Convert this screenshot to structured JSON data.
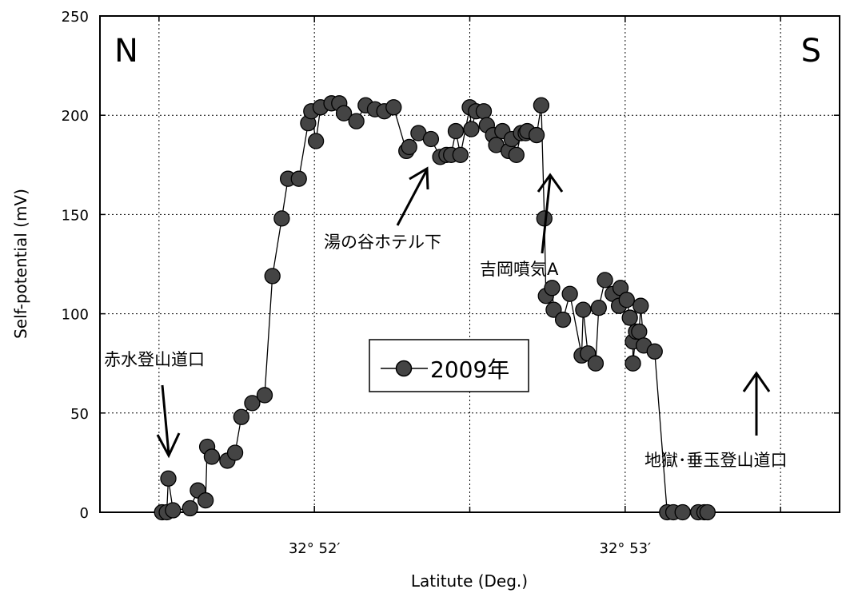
{
  "chart_data": {
    "type": "line",
    "title": "",
    "xlabel": "Latitute (Deg.)",
    "ylabel": "Self-potential (mV)",
    "xlim": [
      51.31,
      53.69
    ],
    "ylim": [
      0,
      250
    ],
    "y_ticks": [
      0,
      50,
      100,
      150,
      200,
      250
    ],
    "x_ticks": [
      {
        "value": 52,
        "label": "32° 52′"
      },
      {
        "value": 53,
        "label": "32° 53′"
      }
    ],
    "x_minor_ticks": [
      51.5,
      52.5,
      53.5
    ],
    "grid": true,
    "series": [
      {
        "name": "2009年",
        "color": "#444444",
        "marker": "circle",
        "x": [
          51.51,
          51.525,
          51.53,
          51.545,
          51.6,
          51.625,
          51.65,
          51.655,
          51.67,
          51.72,
          51.745,
          51.765,
          51.8,
          51.84,
          51.865,
          51.895,
          51.915,
          51.95,
          51.98,
          51.99,
          52.005,
          52.02,
          52.055,
          52.08,
          52.095,
          52.135,
          52.165,
          52.195,
          52.225,
          52.255,
          52.296,
          52.305,
          52.335,
          52.375,
          52.405,
          52.425,
          52.44,
          52.455,
          52.47,
          52.5,
          52.505,
          52.52,
          52.545,
          52.555,
          52.575,
          52.585,
          52.605,
          52.625,
          52.635,
          52.65,
          52.665,
          52.68,
          52.685,
          52.715,
          52.73,
          52.74,
          52.745,
          52.765,
          52.77,
          52.8,
          52.822,
          52.86,
          52.865,
          52.88,
          52.905,
          52.915,
          52.935,
          52.96,
          52.98,
          52.985,
          53.005,
          53.015,
          53.025,
          53.025,
          53.035,
          53.045,
          53.05,
          53.06,
          53.095,
          53.135,
          53.155,
          53.185,
          53.235,
          53.255,
          53.265
        ],
        "y": [
          0,
          0,
          17,
          1,
          2,
          11,
          6,
          33,
          28,
          26,
          30,
          48,
          55,
          59,
          119,
          148,
          168,
          168,
          196,
          202,
          187,
          204,
          206,
          206,
          201,
          197,
          205,
          203,
          202,
          204,
          182,
          184,
          191,
          188,
          179,
          180,
          180,
          192,
          180,
          204,
          193,
          202,
          202,
          195,
          190,
          185,
          192,
          182,
          188,
          180,
          191,
          191,
          192,
          190,
          205,
          148,
          109,
          113,
          102,
          97,
          110,
          79,
          102,
          80,
          75,
          103,
          117,
          110,
          104,
          113,
          107,
          98,
          86,
          75,
          91,
          91,
          104,
          84,
          81,
          0,
          0,
          0,
          0,
          0,
          0
        ]
      }
    ],
    "legend": {
      "placement": "center-left",
      "label": "2009年"
    },
    "annotations": [
      {
        "text": "N"
      },
      {
        "text": "S"
      },
      {
        "text": "赤水登山道口"
      },
      {
        "text": "湯の谷ホテル下"
      },
      {
        "text": "吉岡噴気A"
      },
      {
        "text": "地獄･垂玉登山道口"
      }
    ]
  }
}
